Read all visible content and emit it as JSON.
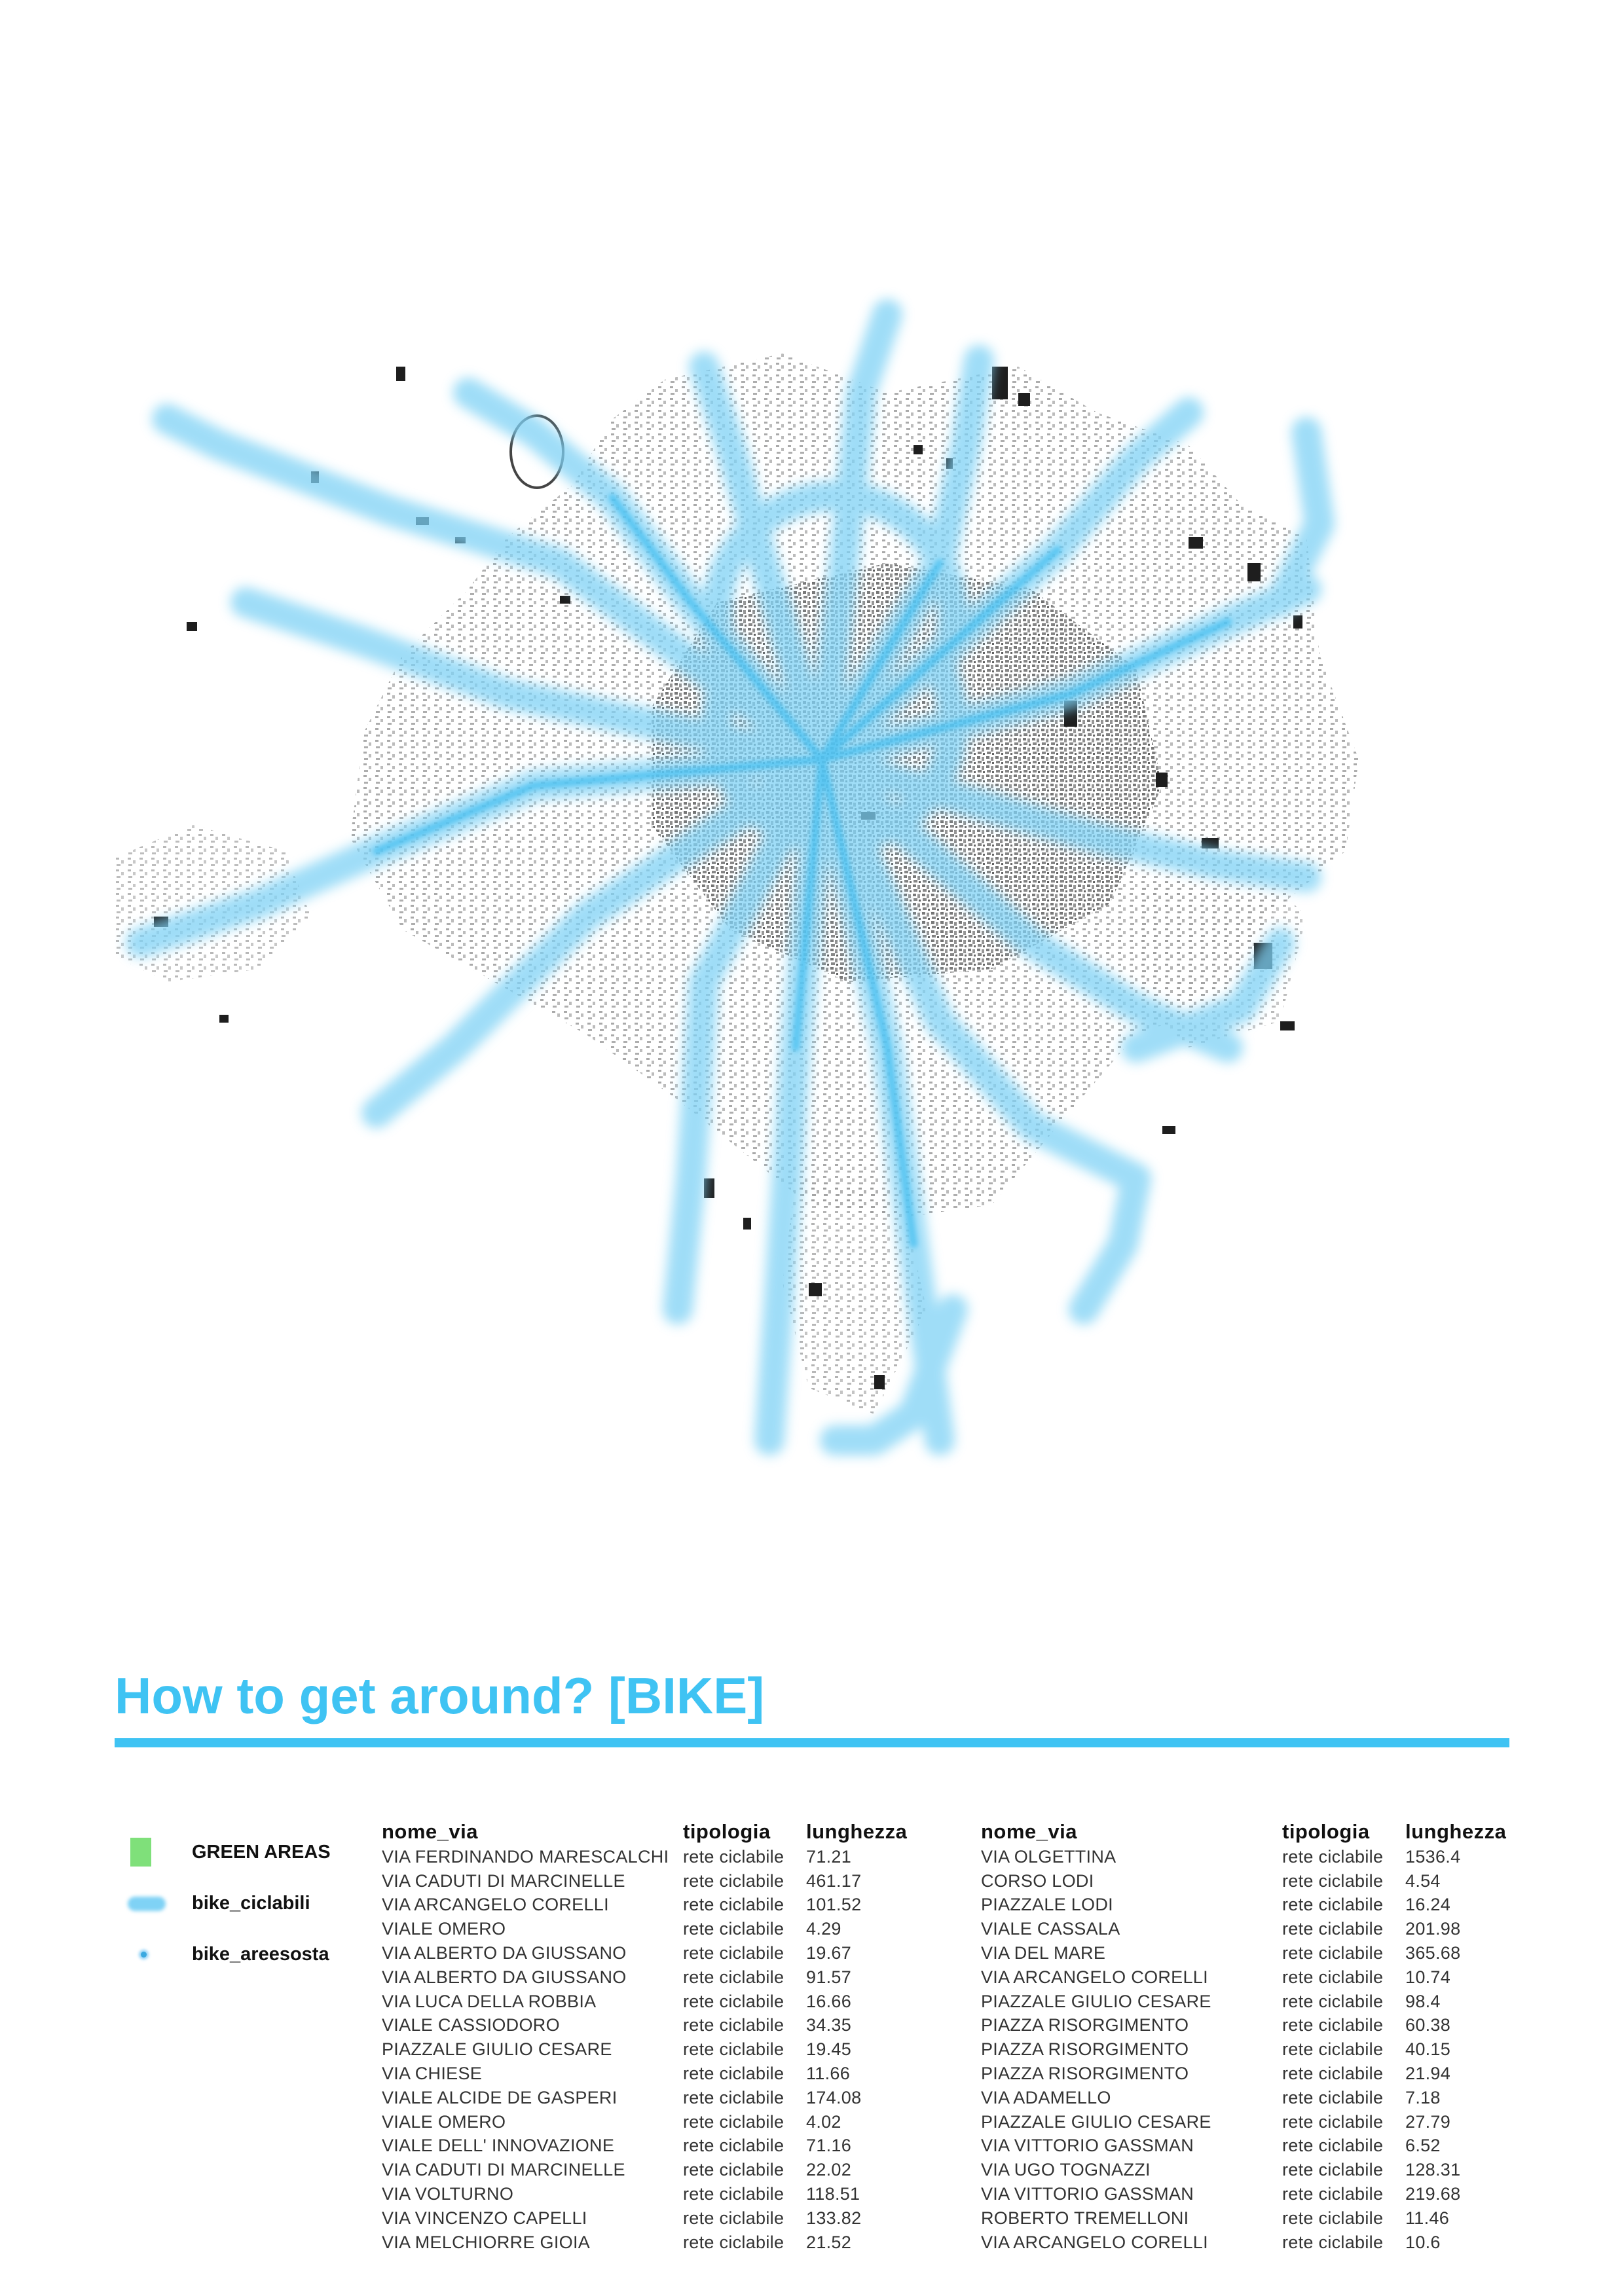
{
  "title": "How to get around? [BIKE]",
  "colors": {
    "accent": "#3fc3f3",
    "green_areas": "#7fe07a",
    "bike": "#4cc0f2",
    "buildings": "#2b2b2b"
  },
  "legend": [
    {
      "label": "GREEN AREAS",
      "symbol": "green-square"
    },
    {
      "label": "bike_ciclabili",
      "symbol": "blue-line"
    },
    {
      "label": "bike_areesosta",
      "symbol": "blue-dot"
    }
  ],
  "tables": [
    {
      "headers": [
        "nome_via",
        "tipologia",
        "lunghezza"
      ],
      "rows": [
        [
          "VIA FERDINANDO MARESCALCHI",
          "rete ciclabile",
          "71.21"
        ],
        [
          "VIA CADUTI DI MARCINELLE",
          "rete ciclabile",
          "461.17"
        ],
        [
          "VIA ARCANGELO CORELLI",
          "rete ciclabile",
          "101.52"
        ],
        [
          "VIALE OMERO",
          "rete ciclabile",
          "4.29"
        ],
        [
          "VIA ALBERTO DA GIUSSANO",
          "rete ciclabile",
          "19.67"
        ],
        [
          "VIA ALBERTO DA GIUSSANO",
          "rete ciclabile",
          "91.57"
        ],
        [
          "VIA LUCA DELLA ROBBIA",
          "rete ciclabile",
          "16.66"
        ],
        [
          "VIALE CASSIODORO",
          "rete ciclabile",
          "34.35"
        ],
        [
          "PIAZZALE GIULIO CESARE",
          "rete ciclabile",
          "19.45"
        ],
        [
          "VIA CHIESE",
          "rete ciclabile",
          "11.66"
        ],
        [
          "VIALE ALCIDE DE GASPERI",
          "rete ciclabile",
          "174.08"
        ],
        [
          "VIALE OMERO",
          "rete ciclabile",
          "4.02"
        ],
        [
          "VIALE DELL' INNOVAZIONE",
          "rete ciclabile",
          "71.16"
        ],
        [
          "VIA CADUTI DI MARCINELLE",
          "rete ciclabile",
          "22.02"
        ],
        [
          "VIA VOLTURNO",
          "rete ciclabile",
          "118.51"
        ],
        [
          "VIA VINCENZO CAPELLI",
          "rete ciclabile",
          "133.82"
        ],
        [
          "VIA MELCHIORRE GIOIA",
          "rete ciclabile",
          "21.52"
        ]
      ]
    },
    {
      "headers": [
        "nome_via",
        "tipologia",
        "lunghezza"
      ],
      "rows": [
        [
          "VIA OLGETTINA",
          "rete ciclabile",
          "1536.4"
        ],
        [
          "CORSO LODI",
          "rete ciclabile",
          "4.54"
        ],
        [
          "PIAZZALE LODI",
          "rete ciclabile",
          "16.24"
        ],
        [
          "VIALE CASSALA",
          "rete ciclabile",
          "201.98"
        ],
        [
          "VIA DEL MARE",
          "rete ciclabile",
          "365.68"
        ],
        [
          "VIA ARCANGELO CORELLI",
          "rete ciclabile",
          "10.74"
        ],
        [
          "PIAZZALE GIULIO CESARE",
          "rete ciclabile",
          "98.4"
        ],
        [
          "PIAZZA RISORGIMENTO",
          "rete ciclabile",
          "60.38"
        ],
        [
          "PIAZZA RISORGIMENTO",
          "rete ciclabile",
          "40.15"
        ],
        [
          "PIAZZA RISORGIMENTO",
          "rete ciclabile",
          "21.94"
        ],
        [
          "VIA ADAMELLO",
          "rete ciclabile",
          "7.18"
        ],
        [
          "PIAZZALE GIULIO CESARE",
          "rete ciclabile",
          "27.79"
        ],
        [
          "VIA VITTORIO GASSMAN",
          "rete ciclabile",
          "6.52"
        ],
        [
          "VIA UGO TOGNAZZI",
          "rete ciclabile",
          "128.31"
        ],
        [
          "VIA VITTORIO GASSMAN",
          "rete ciclabile",
          "219.68"
        ],
        [
          "ROBERTO TREMELLONI",
          "rete ciclabile",
          "11.46"
        ],
        [
          "VIA ARCANGELO CORELLI",
          "rete ciclabile",
          "10.6"
        ]
      ]
    }
  ]
}
